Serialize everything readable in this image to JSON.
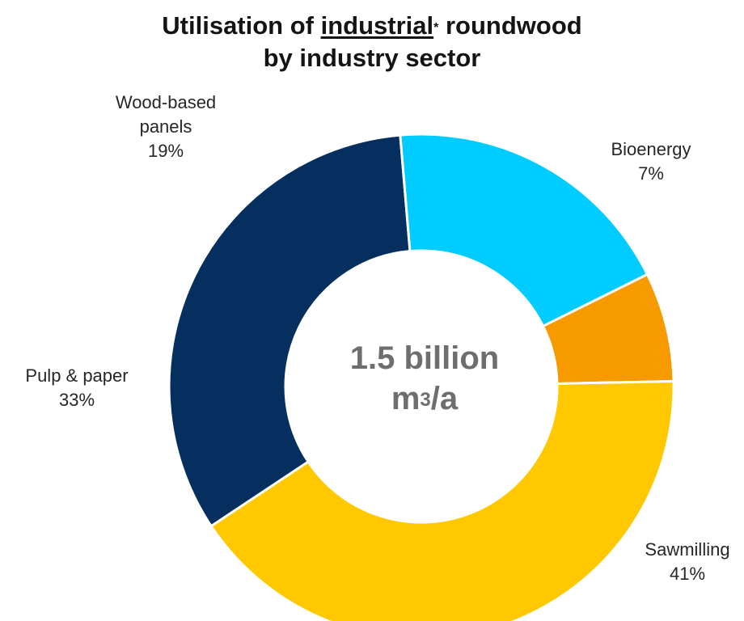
{
  "chart_data": {
    "type": "pie",
    "variant": "donut",
    "title_parts": {
      "before": "Utilisation of ",
      "underlined": "industrial",
      "marker": "*",
      "after": " roundwood",
      "line2": "by industry sector"
    },
    "center_label": {
      "line1": "1.5 billion",
      "unit_base": "m",
      "unit_sup": "3",
      "unit_after": "/a"
    },
    "slices": [
      {
        "category": "Bioenergy",
        "label_lines": [
          "Bioenergy"
        ],
        "value": 7,
        "value_label": "7%",
        "color": "#F79A00"
      },
      {
        "category": "Sawmilling",
        "label_lines": [
          "Sawmilling"
        ],
        "value": 41,
        "value_label": "41%",
        "color": "#FFC800"
      },
      {
        "category": "Pulp & paper",
        "label_lines": [
          "Pulp & paper"
        ],
        "value": 33,
        "value_label": "33%",
        "color": "#052F5F"
      },
      {
        "category": "Wood-based panels",
        "label_lines": [
          "Wood-based",
          "panels"
        ],
        "value": 19,
        "value_label": "19%",
        "color": "#00CCFF"
      }
    ]
  }
}
